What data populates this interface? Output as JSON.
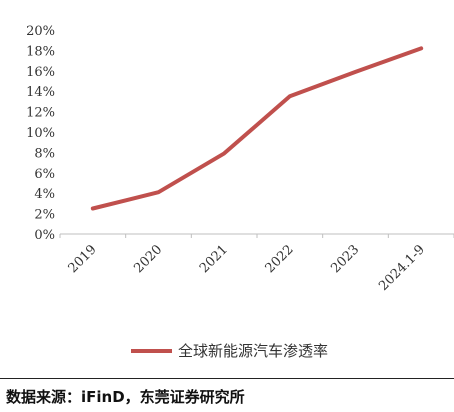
{
  "chart_data": {
    "type": "line",
    "categories": [
      "2019",
      "2020",
      "2021",
      "2022",
      "2023",
      "2024.1-9"
    ],
    "series": [
      {
        "name": "全球新能源汽车渗透率",
        "values": [
          2.5,
          4.1,
          7.9,
          13.5,
          15.9,
          18.2
        ],
        "color": "#c0504d"
      }
    ],
    "yticks": [
      "0%",
      "2%",
      "4%",
      "6%",
      "8%",
      "10%",
      "12%",
      "14%",
      "16%",
      "18%",
      "20%"
    ],
    "ylim": [
      0,
      20
    ],
    "grid": false,
    "legend_position": "bottom-center",
    "title": "",
    "xlabel": "",
    "ylabel": ""
  },
  "source": {
    "text": "数据来源：iFinD，东莞证券研究所"
  }
}
